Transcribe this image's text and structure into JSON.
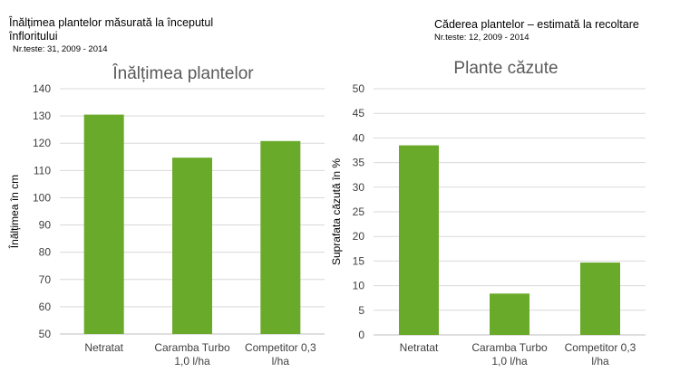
{
  "headers": {
    "left": {
      "title": "Înălțimea plantelor măsurată la începutul înfloritului",
      "subtitle": "Nr.teste: 31, 2009 - 2014"
    },
    "right": {
      "title": "Căderea plantelor – estimată la recoltare",
      "subtitle": "Nr.teste: 12, 2009 - 2014"
    }
  },
  "colors": {
    "bar": "#6aaa2a",
    "grid": "#d9d9d9",
    "title": "#595959"
  },
  "chart_data": [
    {
      "type": "bar",
      "title": "Înălțimea plantelor",
      "xlabel": "",
      "ylabel": "Înălțimea în cm",
      "ylim": [
        50,
        140
      ],
      "yticks": [
        50,
        60,
        70,
        80,
        90,
        100,
        110,
        120,
        130,
        140
      ],
      "categories": [
        [
          "Netratat"
        ],
        [
          "Caramba Turbo",
          "1,0 l/ha"
        ],
        [
          "Competitor 0,3",
          "l/ha"
        ]
      ],
      "values": [
        130.5,
        114.7,
        120.8
      ],
      "grid": true,
      "legend": "none"
    },
    {
      "type": "bar",
      "title": "Plante căzute",
      "xlabel": "",
      "ylabel": "Suprafata căzută în %",
      "ylim": [
        0,
        50
      ],
      "yticks": [
        0,
        5,
        10,
        15,
        20,
        25,
        30,
        35,
        40,
        45,
        50
      ],
      "categories": [
        [
          "Netratat"
        ],
        [
          "Caramba Turbo",
          "1,0 l/ha"
        ],
        [
          "Competitor 0,3",
          "l/ha"
        ]
      ],
      "values": [
        38.5,
        8.4,
        14.7
      ],
      "grid": true,
      "legend": "none"
    }
  ]
}
